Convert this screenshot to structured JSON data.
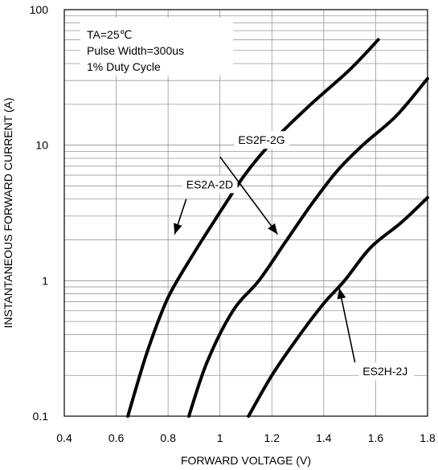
{
  "chart_data": {
    "type": "line",
    "xlabel": "FORWARD VOLTAGE (V)",
    "ylabel": "INSTANTANEOUS FORWARD CURRENT (A)",
    "xlim": [
      0.4,
      1.8
    ],
    "ylim": [
      0.1,
      100
    ],
    "yscale": "log",
    "grid": true,
    "x_ticks": [
      "0.4",
      "0.6",
      "0.8",
      "1",
      "1.2",
      "1.4",
      "1.6",
      "1.8"
    ],
    "y_ticks": [
      "0.1",
      "1",
      "10",
      "100"
    ],
    "annotations": [
      "TA=25℃",
      "Pulse Width=300us",
      "1% Duty Cycle"
    ],
    "series": [
      {
        "name": "ES2A-2D",
        "points": [
          [
            0.645,
            0.1
          ],
          [
            0.72,
            0.3
          ],
          [
            0.8,
            0.75
          ],
          [
            0.9,
            1.6
          ],
          [
            1.0,
            3.2
          ],
          [
            1.1,
            6.2
          ],
          [
            1.2,
            10.5
          ],
          [
            1.35,
            20
          ],
          [
            1.5,
            36
          ],
          [
            1.61,
            60
          ]
        ]
      },
      {
        "name": "ES2F-2G",
        "points": [
          [
            0.88,
            0.1
          ],
          [
            0.95,
            0.25
          ],
          [
            1.05,
            0.6
          ],
          [
            1.15,
            1.0
          ],
          [
            1.25,
            1.9
          ],
          [
            1.35,
            3.6
          ],
          [
            1.45,
            6.4
          ],
          [
            1.55,
            10
          ],
          [
            1.68,
            16.5
          ],
          [
            1.8,
            31
          ]
        ]
      },
      {
        "name": "ES2H-2J",
        "points": [
          [
            1.11,
            0.1
          ],
          [
            1.2,
            0.2
          ],
          [
            1.3,
            0.38
          ],
          [
            1.4,
            0.68
          ],
          [
            1.48,
            1.0
          ],
          [
            1.58,
            1.75
          ],
          [
            1.7,
            2.7
          ],
          [
            1.8,
            4.1
          ]
        ]
      }
    ],
    "series_labels": [
      {
        "series": "ES2A-2D",
        "text": "ES2A-2D",
        "label_x": 0.87,
        "label_y": 4.8,
        "arrow_from": [
          0.87,
          4.0
        ],
        "arrow_to": [
          0.825,
          2.2
        ]
      },
      {
        "series": "ES2F-2G",
        "text": "ES2F-2G",
        "label_x": 1.07,
        "label_y": 10.2,
        "arrow_from": [
          1.0,
          8.2
        ],
        "arrow_to": [
          1.222,
          2.2
        ]
      },
      {
        "series": "ES2H-2J",
        "text": "ES2H-2J",
        "label_x": 1.55,
        "label_y": 0.2,
        "arrow_from": [
          1.52,
          0.25
        ],
        "arrow_to": [
          1.46,
          0.88
        ]
      }
    ],
    "colors": {
      "line": "#000000",
      "grid": "#999999",
      "frame": "#000000"
    }
  }
}
